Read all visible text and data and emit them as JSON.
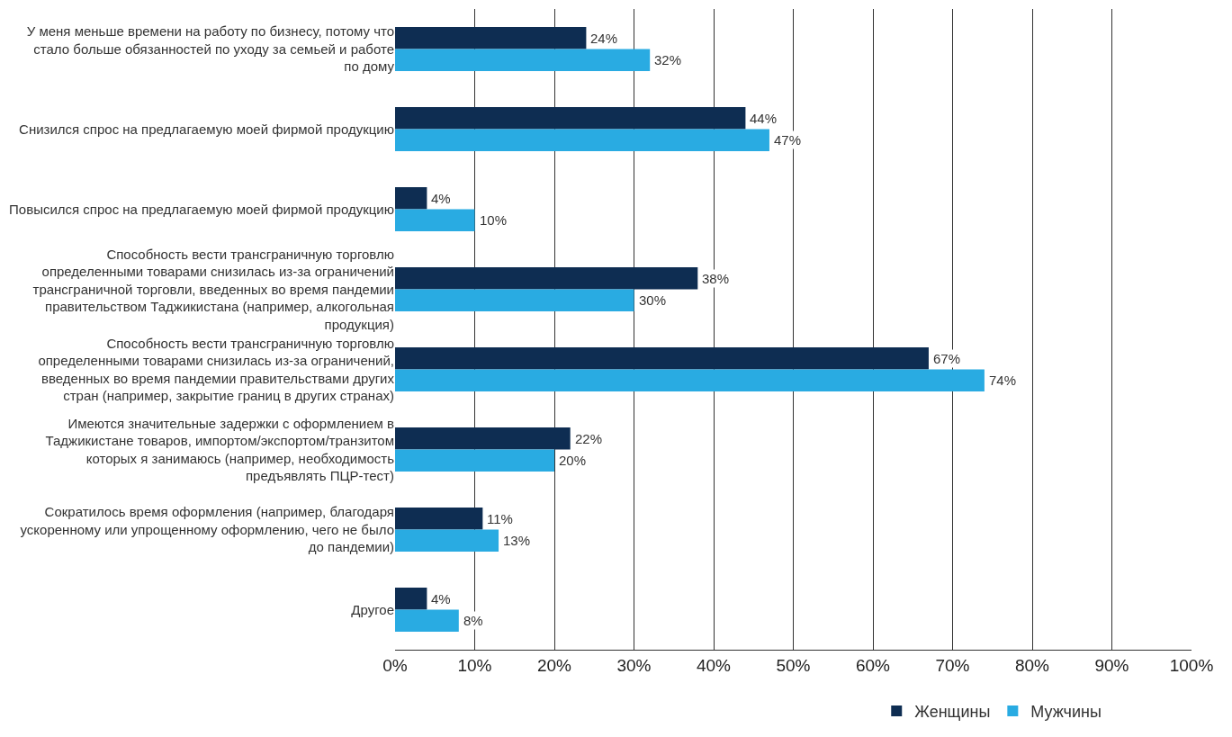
{
  "chart_data": {
    "type": "bar",
    "orientation": "horizontal",
    "categories": [
      "У меня меньше времени на работу по бизнесу, потому что стало больше обязанностей по уходу за семьей и работе по дому",
      "Снизился спрос на предлагаемую моей фирмой продукцию",
      "Повысился спрос на предлагаемую моей фирмой продукцию",
      "Способность вести трансграничную торговлю определенными товарами снизилась из-за ограничений трансграничной торговли, введенных во время пандемии правительством Таджикистана (например, алкогольная продукция)",
      "Способность вести трансграничную торговлю определенными товарами снизилась из-за ограничений, введенных во время пандемии правительствами других стран (например, закрытие границ в других странах)",
      "Имеются значительные задержки с оформлением в Таджикистане товаров, импортом/экспортом/транзитом которых я занимаюсь (например, необходимость предъявлять ПЦР-тест)",
      "Сократилось время оформления (например, благодаря ускоренному или упрощенному оформлению, чего не было до пандемии)",
      "Другое"
    ],
    "series": [
      {
        "name": "Женщины",
        "color": "#0e2d52",
        "values": [
          24,
          44,
          4,
          38,
          67,
          22,
          11,
          4
        ],
        "value_labels": [
          "24%",
          "44%",
          "4%",
          "38%",
          "67%",
          "22%",
          "11%",
          "4%"
        ]
      },
      {
        "name": "Мужчины",
        "color": "#29abe2",
        "values": [
          32,
          47,
          10,
          30,
          74,
          20,
          13,
          8
        ],
        "value_labels": [
          "32%",
          "47%",
          "10%",
          "30%",
          "74%",
          "20%",
          "13%",
          "8%"
        ]
      }
    ],
    "xlim": [
      0,
      100
    ],
    "xticks": [
      {
        "value": 0,
        "label": "0%"
      },
      {
        "value": 10,
        "label": "10%"
      },
      {
        "value": 20,
        "label": "20%"
      },
      {
        "value": 30,
        "label": "30%"
      },
      {
        "value": 40,
        "label": "40%"
      },
      {
        "value": 50,
        "label": "50%"
      },
      {
        "value": 60,
        "label": "60%"
      },
      {
        "value": 70,
        "label": "70%"
      },
      {
        "value": 80,
        "label": "80%"
      },
      {
        "value": 90,
        "label": "90%"
      },
      {
        "value": 100,
        "label": "100%"
      }
    ],
    "grid": "x",
    "legend": "bottom"
  }
}
